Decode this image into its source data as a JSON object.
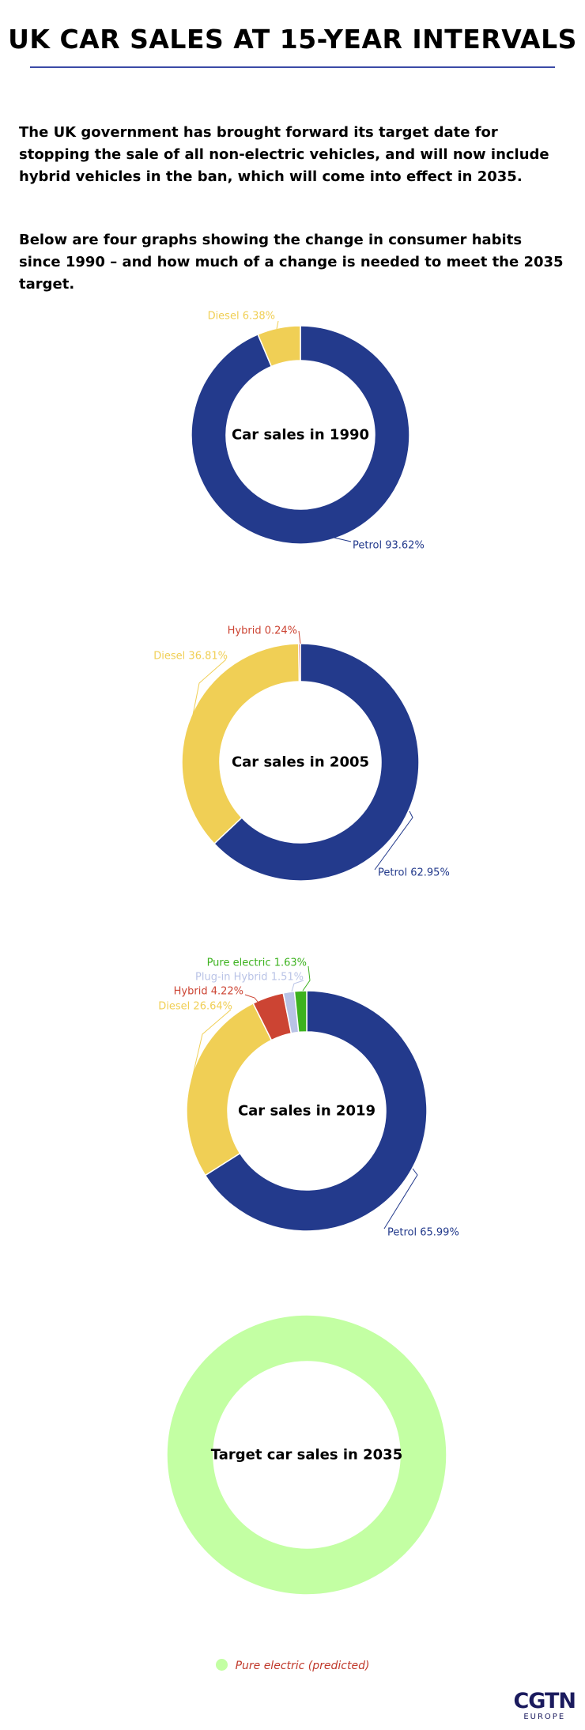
{
  "title": "UK CAR SALES AT 15-YEAR INTERVALS",
  "intro": [
    "The UK government has brought forward its target date for stopping the sale of all non-electric vehicles, and will now include hybrid vehicles in the ban, which will come into effect in 2035.",
    "Below are four graphs showing the change in consumer habits since 1990 – and how much of a change is needed to meet the 2035 target."
  ],
  "colors": {
    "petrol": "#233a8c",
    "diesel": "#f0cf55",
    "hybrid": "#cc4433",
    "plugin_hybrid": "#b9c3e6",
    "pure_electric": "#3cb21e",
    "pure_electric_predicted": "#c3ffa3"
  },
  "chart_data": [
    {
      "type": "pie",
      "variant": "donut",
      "title": "Car sales in 1990",
      "slices": [
        {
          "name": "Petrol",
          "value": 93.62,
          "label": "Petrol 93.62%",
          "color": "#233a8c"
        },
        {
          "name": "Diesel",
          "value": 6.38,
          "label": "Diesel 6.38%",
          "color": "#f0cf55"
        }
      ]
    },
    {
      "type": "pie",
      "variant": "donut",
      "title": "Car sales in 2005",
      "slices": [
        {
          "name": "Petrol",
          "value": 62.95,
          "label": "Petrol 62.95%",
          "color": "#233a8c"
        },
        {
          "name": "Diesel",
          "value": 36.81,
          "label": "Diesel 36.81%",
          "color": "#f0cf55"
        },
        {
          "name": "Hybrid",
          "value": 0.24,
          "label": "Hybrid 0.24%",
          "color": "#cc4433"
        }
      ]
    },
    {
      "type": "pie",
      "variant": "donut",
      "title": "Car sales in 2019",
      "slices": [
        {
          "name": "Petrol",
          "value": 65.99,
          "label": "Petrol 65.99%",
          "color": "#233a8c"
        },
        {
          "name": "Diesel",
          "value": 26.64,
          "label": "Diesel 26.64%",
          "color": "#f0cf55"
        },
        {
          "name": "Hybrid",
          "value": 4.22,
          "label": "Hybrid 4.22%",
          "color": "#cc4433"
        },
        {
          "name": "Plug-in Hybrid",
          "value": 1.51,
          "label": "Plug-in Hybrid 1.51%",
          "color": "#b9c3e6"
        },
        {
          "name": "Pure electric",
          "value": 1.63,
          "label": "Pure electric 1.63%",
          "color": "#3cb21e"
        }
      ]
    },
    {
      "type": "pie",
      "variant": "donut",
      "title": "Target car sales in 2035",
      "slices": [
        {
          "name": "Pure electric (predicted)",
          "value": 100,
          "label": "",
          "color": "#c3ffa3"
        }
      ]
    }
  ],
  "legend": {
    "label": "Pure electric (predicted)",
    "color": "#c3ffa3"
  },
  "logo": {
    "main": "CGTN",
    "sub": "EUROPE"
  }
}
